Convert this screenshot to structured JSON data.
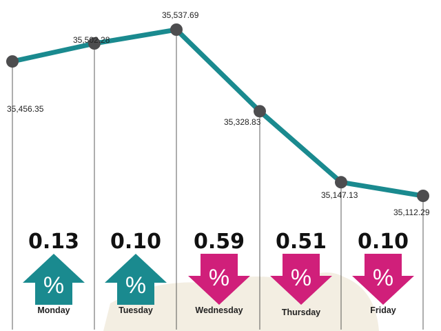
{
  "colors": {
    "line": "#1a8a8f",
    "marker": "#4d4d4f",
    "gain": "#1a8a8f",
    "loss": "#d01f7a",
    "map": "#f3eee2"
  },
  "chart_data": {
    "type": "line",
    "categories": [
      "Monday",
      "Tuesday",
      "Wednesday",
      "Thursday",
      "Friday"
    ],
    "points": [
      {
        "label": "35,456.35",
        "value": 35456.35
      },
      {
        "label": "35,502.28",
        "value": 35502.28
      },
      {
        "label": "35,537.69",
        "value": 35537.69
      },
      {
        "label": "35,328.83",
        "value": 35328.83
      },
      {
        "label": "35,147.13",
        "value": 35147.13
      },
      {
        "label": "35,112.29",
        "value": 35112.29
      }
    ],
    "daily_change": [
      {
        "day": "Monday",
        "change": "0.13",
        "direction": "up",
        "symbol": "%"
      },
      {
        "day": "Tuesday",
        "change": "0.10",
        "direction": "up",
        "symbol": "%"
      },
      {
        "day": "Wednesday",
        "change": "0.59",
        "direction": "down",
        "symbol": "%"
      },
      {
        "day": "Thursday",
        "change": "0.51",
        "direction": "down",
        "symbol": "%"
      },
      {
        "day": "Friday",
        "change": "0.10",
        "direction": "down",
        "symbol": "%"
      }
    ],
    "grid": "vertical lines at each point"
  }
}
